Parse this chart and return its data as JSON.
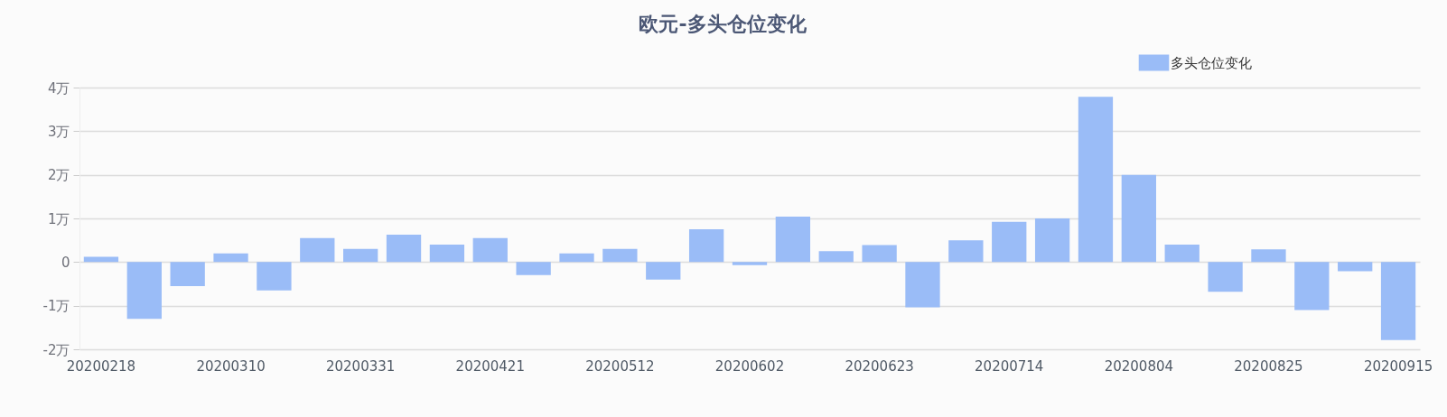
{
  "chart_data": {
    "type": "bar",
    "title": "欧元-多头仓位变化",
    "categories": [
      "20200218",
      null,
      null,
      "20200310",
      null,
      null,
      "20200331",
      null,
      null,
      "20200421",
      null,
      null,
      "20200512",
      null,
      null,
      "20200602",
      null,
      null,
      "20200623",
      null,
      null,
      "20200714",
      null,
      null,
      "20200804",
      null,
      null,
      "20200825",
      null,
      null,
      "20200915"
    ],
    "series": [
      {
        "name": "多头仓位变化",
        "color": "#9abcf7",
        "values": [
          0.12,
          -1.3,
          -0.55,
          0.2,
          -0.65,
          0.55,
          0.3,
          0.63,
          0.4,
          0.55,
          -0.3,
          0.2,
          0.3,
          -0.4,
          0.75,
          -0.07,
          1.04,
          0.25,
          0.39,
          -1.04,
          0.5,
          0.92,
          1.0,
          3.79,
          2.0,
          0.4,
          -0.68,
          0.29,
          -1.1,
          -0.21,
          -1.79
        ]
      }
    ],
    "ylim": [
      -2,
      4
    ],
    "yticks": [
      {
        "value": -2,
        "label": "-2万"
      },
      {
        "value": -1,
        "label": "-1万"
      },
      0,
      {
        "value": 1,
        "label": "1万"
      },
      {
        "value": 2,
        "label": "2万"
      },
      {
        "value": 3,
        "label": "3万"
      },
      {
        "value": 4,
        "label": "4万"
      }
    ],
    "grid": "y",
    "legend": "top right"
  }
}
